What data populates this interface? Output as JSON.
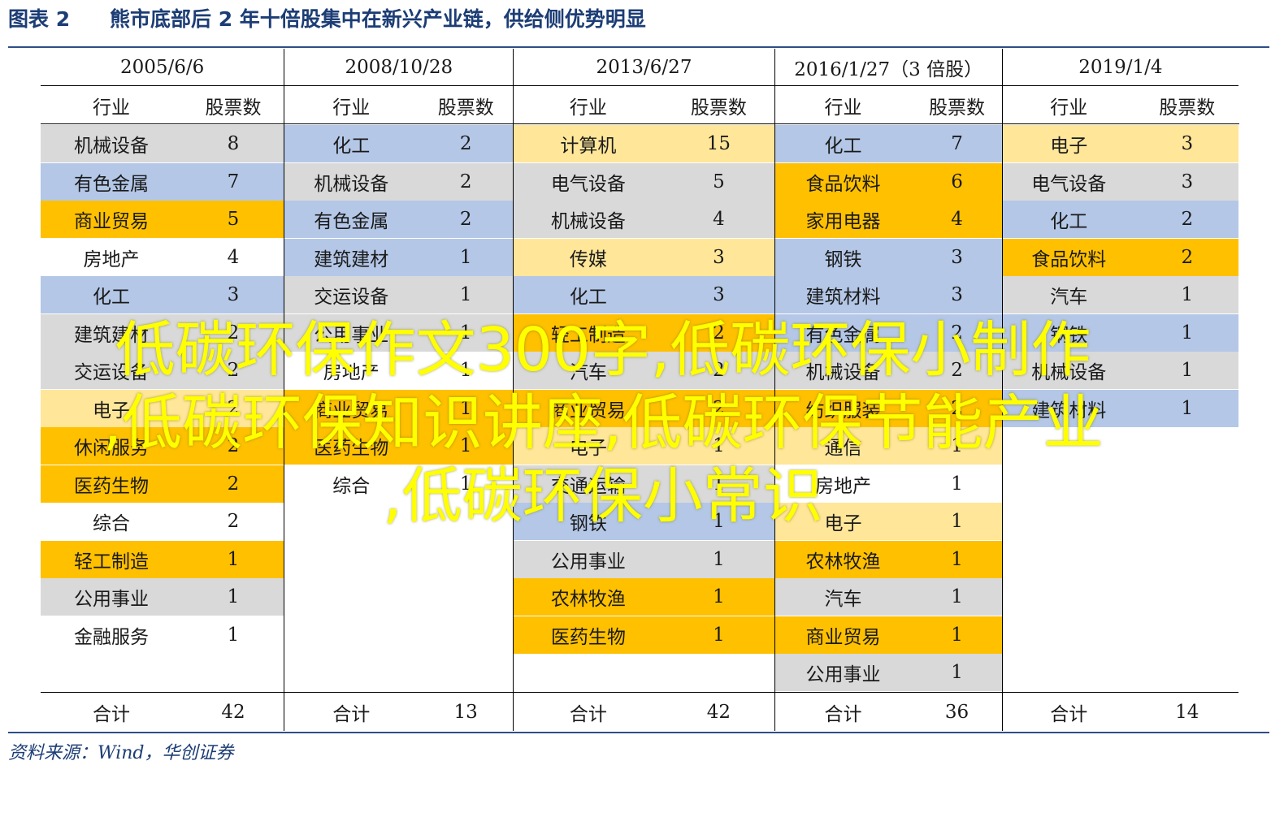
{
  "caption": {
    "label": "图表 2",
    "title": "熊市底部后 2 年十倍股集中在新兴产业链，供给侧优势明显"
  },
  "colors": {
    "blue": "#b4c7e7",
    "gray": "#d9d9d9",
    "orange": "#ffc000",
    "light_yellow": "#ffe699",
    "white": "#ffffff",
    "accent": "#1c3d75",
    "watermark": "#ffff00"
  },
  "table": {
    "groups": [
      {
        "date": "2005/6/6",
        "header_industry": "行业",
        "header_count": "股票数",
        "rows": [
          {
            "industry": "机械设备",
            "count": "8",
            "color": "gray"
          },
          {
            "industry": "有色金属",
            "count": "7",
            "color": "blue"
          },
          {
            "industry": "商业贸易",
            "count": "5",
            "color": "orange"
          },
          {
            "industry": "房地产",
            "count": "4",
            "color": "white"
          },
          {
            "industry": "化工",
            "count": "3",
            "color": "blue"
          },
          {
            "industry": "建筑建材",
            "count": "2",
            "color": "gray"
          },
          {
            "industry": "交运设备",
            "count": "2",
            "color": "gray"
          },
          {
            "industry": "电子",
            "count": "2",
            "color": "light_yellow"
          },
          {
            "industry": "休闲服务",
            "count": "2",
            "color": "orange"
          },
          {
            "industry": "医药生物",
            "count": "2",
            "color": "orange"
          },
          {
            "industry": "综合",
            "count": "2",
            "color": "white"
          },
          {
            "industry": "轻工制造",
            "count": "1",
            "color": "orange"
          },
          {
            "industry": "公用事业",
            "count": "1",
            "color": "gray"
          },
          {
            "industry": "金融服务",
            "count": "1",
            "color": "white"
          }
        ],
        "total_label": "合计",
        "total": "42"
      },
      {
        "date": "2008/10/28",
        "header_industry": "行业",
        "header_count": "股票数",
        "rows": [
          {
            "industry": "化工",
            "count": "2",
            "color": "blue"
          },
          {
            "industry": "机械设备",
            "count": "2",
            "color": "gray"
          },
          {
            "industry": "有色金属",
            "count": "2",
            "color": "blue"
          },
          {
            "industry": "建筑建材",
            "count": "1",
            "color": "blue"
          },
          {
            "industry": "交运设备",
            "count": "1",
            "color": "gray"
          },
          {
            "industry": "公用事业",
            "count": "1",
            "color": "gray"
          },
          {
            "industry": "房地产",
            "count": "1",
            "color": "white"
          },
          {
            "industry": "商业贸易",
            "count": "1",
            "color": "orange"
          },
          {
            "industry": "医药生物",
            "count": "1",
            "color": "orange"
          },
          {
            "industry": "综合",
            "count": "1",
            "color": "white"
          }
        ],
        "total_label": "合计",
        "total": "13"
      },
      {
        "date": "2013/6/27",
        "header_industry": "行业",
        "header_count": "股票数",
        "rows": [
          {
            "industry": "计算机",
            "count": "15",
            "color": "light_yellow"
          },
          {
            "industry": "电气设备",
            "count": "5",
            "color": "gray"
          },
          {
            "industry": "机械设备",
            "count": "4",
            "color": "gray"
          },
          {
            "industry": "传媒",
            "count": "3",
            "color": "light_yellow"
          },
          {
            "industry": "化工",
            "count": "3",
            "color": "blue"
          },
          {
            "industry": "轻工制造",
            "count": "2",
            "color": "orange"
          },
          {
            "industry": "汽车",
            "count": "2",
            "color": "gray"
          },
          {
            "industry": "商业贸易",
            "count": "2",
            "color": "orange"
          },
          {
            "industry": "电子",
            "count": "1",
            "color": "light_yellow"
          },
          {
            "industry": "交通运输",
            "count": "1",
            "color": "gray"
          },
          {
            "industry": "钢铁",
            "count": "1",
            "color": "blue"
          },
          {
            "industry": "公用事业",
            "count": "1",
            "color": "gray"
          },
          {
            "industry": "农林牧渔",
            "count": "1",
            "color": "orange"
          },
          {
            "industry": "医药生物",
            "count": "1",
            "color": "orange"
          }
        ],
        "total_label": "合计",
        "total": "42"
      },
      {
        "date": "2016/1/27（3 倍股）",
        "header_industry": "行业",
        "header_count": "股票数",
        "rows": [
          {
            "industry": "化工",
            "count": "7",
            "color": "blue"
          },
          {
            "industry": "食品饮料",
            "count": "6",
            "color": "orange"
          },
          {
            "industry": "家用电器",
            "count": "4",
            "color": "orange"
          },
          {
            "industry": "钢铁",
            "count": "3",
            "color": "blue"
          },
          {
            "industry": "建筑材料",
            "count": "3",
            "color": "blue"
          },
          {
            "industry": "有色金属",
            "count": "2",
            "color": "blue"
          },
          {
            "industry": "机械设备",
            "count": "2",
            "color": "gray"
          },
          {
            "industry": "纺织服装",
            "count": "2",
            "color": "orange"
          },
          {
            "industry": "通信",
            "count": "1",
            "color": "light_yellow"
          },
          {
            "industry": "房地产",
            "count": "1",
            "color": "white"
          },
          {
            "industry": "电子",
            "count": "1",
            "color": "light_yellow"
          },
          {
            "industry": "农林牧渔",
            "count": "1",
            "color": "orange"
          },
          {
            "industry": "汽车",
            "count": "1",
            "color": "gray"
          },
          {
            "industry": "商业贸易",
            "count": "1",
            "color": "orange"
          },
          {
            "industry": "公用事业",
            "count": "1",
            "color": "gray"
          }
        ],
        "total_label": "合计",
        "total": "36"
      },
      {
        "date": "2019/1/4",
        "header_industry": "行业",
        "header_count": "股票数",
        "rows": [
          {
            "industry": "电子",
            "count": "3",
            "color": "light_yellow"
          },
          {
            "industry": "电气设备",
            "count": "3",
            "color": "gray"
          },
          {
            "industry": "化工",
            "count": "2",
            "color": "blue"
          },
          {
            "industry": "食品饮料",
            "count": "2",
            "color": "orange"
          },
          {
            "industry": "汽车",
            "count": "1",
            "color": "gray"
          },
          {
            "industry": "钢铁",
            "count": "1",
            "color": "blue"
          },
          {
            "industry": "机械设备",
            "count": "1",
            "color": "gray"
          },
          {
            "industry": "建筑材料",
            "count": "1",
            "color": "blue"
          }
        ],
        "total_label": "合计",
        "total": "14"
      }
    ]
  },
  "source": "资料来源：Wind，华创证券",
  "watermark": {
    "line1": "低碳环保作文300字,低碳环保小制作",
    "line2": ",低碳环保知识讲座,低碳环保节能产业",
    "line3": ",低碳环保小常识"
  }
}
